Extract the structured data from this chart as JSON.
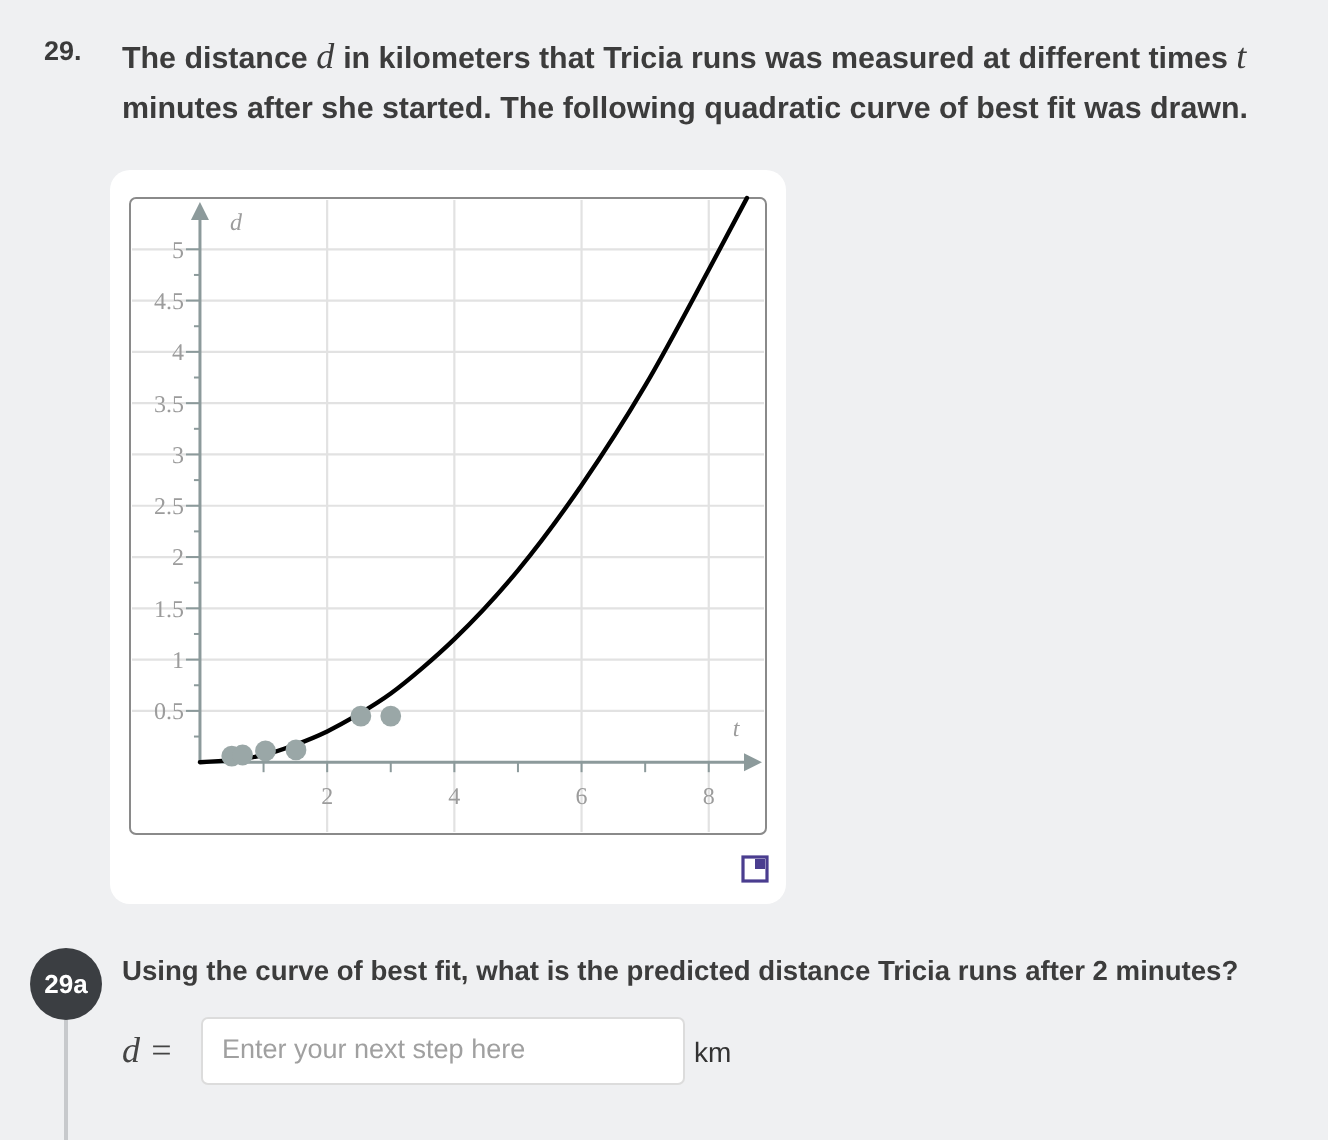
{
  "chart_data": {
    "type": "scatter",
    "title": "The distance d in kilometers that Tricia runs was measured at different times t minutes after she started. The following quadratic curve of best fit was drawn.",
    "xlabel": "t",
    "ylabel": "d",
    "xlim": [
      -1.1,
      8.9
    ],
    "ylim": [
      -0.7,
      5.5
    ],
    "xticks": [
      {
        "value": 1,
        "label": null
      },
      2,
      {
        "value": 3,
        "label": null
      },
      4,
      {
        "value": 5,
        "label": null
      },
      6,
      {
        "value": 7,
        "label": null
      },
      8
    ],
    "yticks": [
      {
        "value": 0.25,
        "label": null
      },
      0.5,
      {
        "value": 0.75,
        "label": null
      },
      1,
      {
        "value": 1.25,
        "label": null
      },
      1.5,
      {
        "value": 1.75,
        "label": null
      },
      2,
      {
        "value": 2.25,
        "label": null
      },
      2.5,
      {
        "value": 2.75,
        "label": null
      },
      3,
      {
        "value": 3.25,
        "label": null
      },
      3.5,
      {
        "value": 3.75,
        "label": null
      },
      4,
      {
        "value": 4.25,
        "label": null
      },
      4.5,
      {
        "value": 4.75,
        "label": null
      },
      5
    ],
    "grid": true,
    "marker": "circle",
    "series": [
      {
        "type": "line",
        "marker": "none",
        "color": "#000000",
        "x": [
          0,
          0.5,
          1,
          1.5,
          2,
          2.5,
          3,
          3.5,
          4,
          5,
          6,
          7,
          8,
          8.6
        ],
        "values": [
          0,
          0.02,
          0.07,
          0.17,
          0.3,
          0.47,
          0.67,
          0.92,
          1.2,
          1.87,
          2.7,
          3.67,
          4.8,
          5.5
        ]
      },
      {
        "color": "#9aa7a7",
        "x": [
          0.5,
          0.67,
          1.03,
          1.51,
          2.53,
          3.0
        ],
        "values": [
          0.06,
          0.07,
          0.11,
          0.12,
          0.45,
          0.45
        ]
      }
    ],
    "annotations": [
      "29.",
      "29a",
      "Using the curve of best fit, what is the predicted distance Tricia runs after 2 minutes?",
      "d =",
      "Enter your next step here",
      "km"
    ]
  }
}
